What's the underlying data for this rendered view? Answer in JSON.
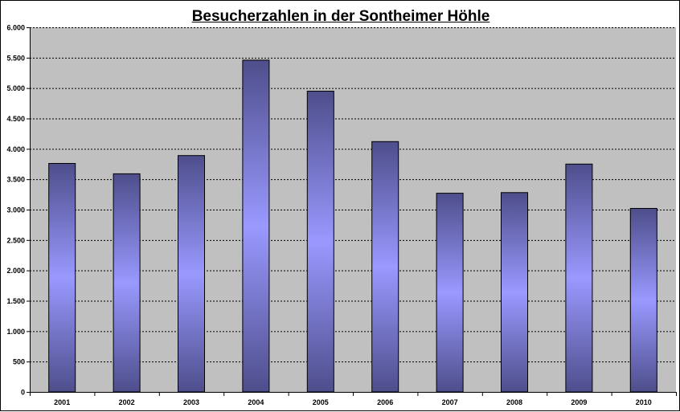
{
  "chart_data": {
    "type": "bar",
    "title": "Besucherzahlen in der Sontheimer Höhle",
    "xlabel": "",
    "ylabel": "",
    "categories": [
      "2001",
      "2002",
      "2003",
      "2004",
      "2005",
      "2006",
      "2007",
      "2008",
      "2009",
      "2010"
    ],
    "values": [
      3760,
      3590,
      3890,
      5460,
      4950,
      4120,
      3270,
      3280,
      3750,
      3020
    ],
    "ylim": [
      0,
      6000
    ],
    "yticks": [
      0,
      500,
      1000,
      1500,
      2000,
      2500,
      3000,
      3500,
      4000,
      4500,
      5000,
      5500,
      6000
    ],
    "ytick_labels": [
      "0",
      "500",
      "1.000",
      "1.500",
      "2.000",
      "2.500",
      "3.000",
      "3.500",
      "4.000",
      "4.500",
      "5.000",
      "5.500",
      "6.000"
    ],
    "grid": "horizontal dashed",
    "legend": "none",
    "colors": {
      "plot_background": "#c0c0c0",
      "bar_edge": "#4a4a8a",
      "bar_center": "#9999ff",
      "bar_outer": "#4e4e8c",
      "gridline": "#000000"
    }
  }
}
